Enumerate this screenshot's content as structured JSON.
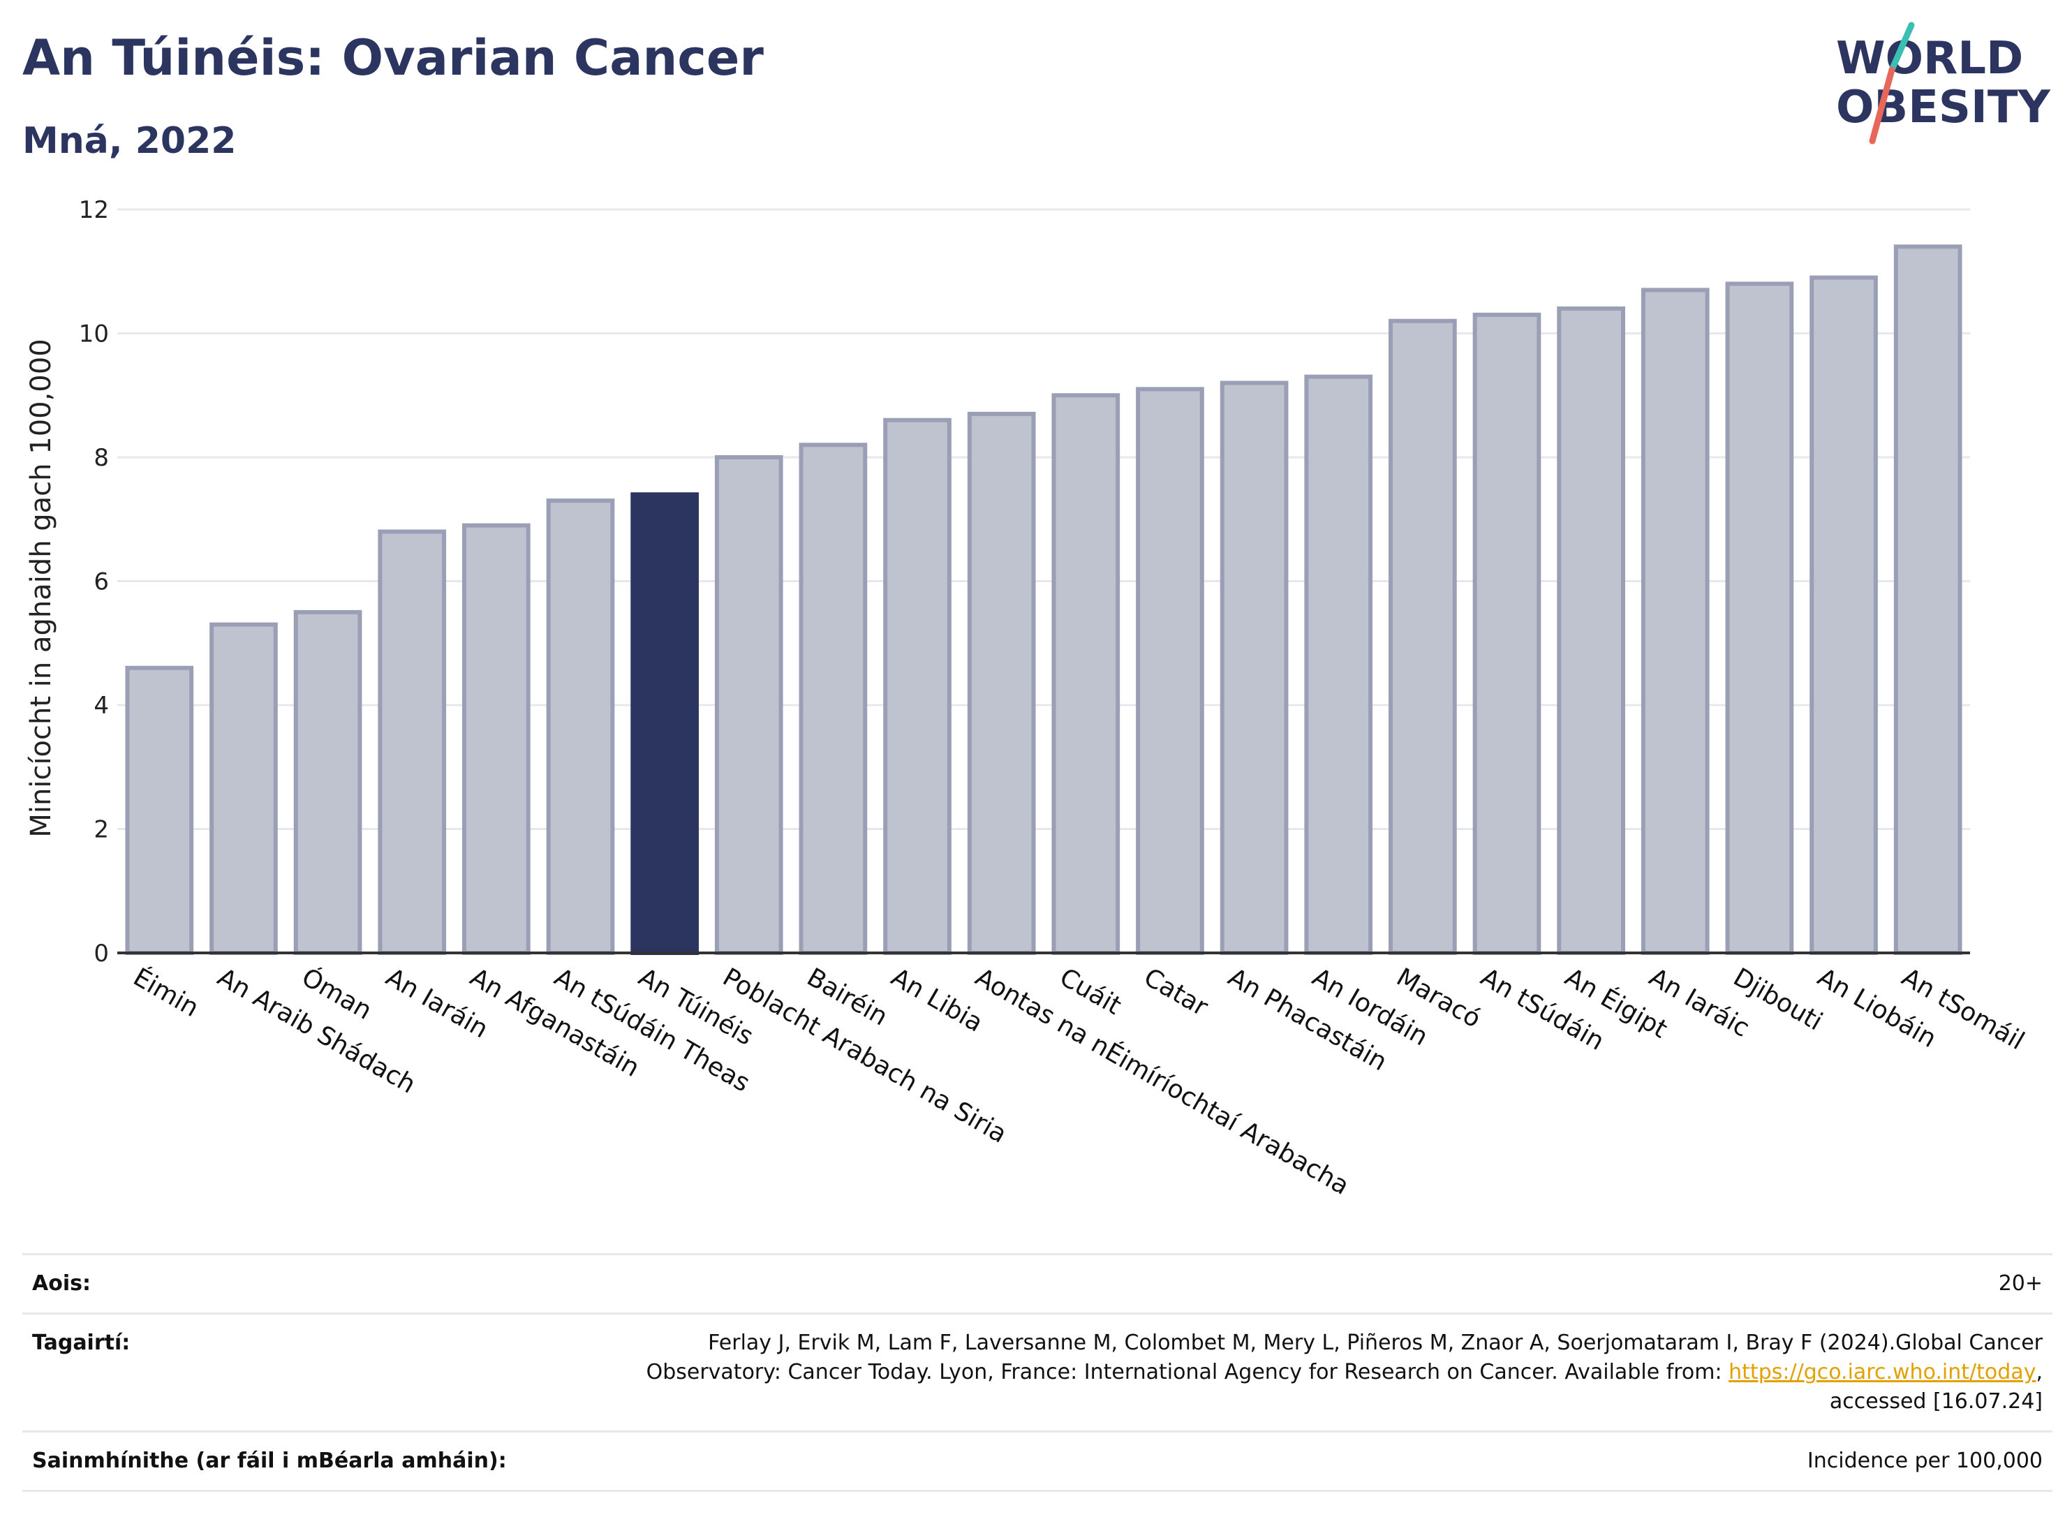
{
  "header": {
    "title": "An Túinéis: Ovarian Cancer",
    "subtitle": "Mná, 2022"
  },
  "logo": {
    "line1": "WORLD",
    "line2": "OBESITY",
    "slash_colors": [
      "#3cbfb3",
      "#e7685a"
    ],
    "text_color": "#2b3560"
  },
  "chart_data": {
    "type": "bar",
    "ylabel": "Minicíocht in aghaidh gach 100,000",
    "xlabel": "",
    "ylim": [
      0,
      12
    ],
    "yticks": [
      0,
      2,
      4,
      6,
      8,
      10,
      12
    ],
    "grid": true,
    "categories": [
      "Éimin",
      "An Araib Shádach",
      "Óman",
      "An Iaráin",
      "An Afganastáin",
      "An tSúdáin Theas",
      "An Túinéis",
      "Poblacht Arabach na Siria",
      "Bairéin",
      "An Libia",
      "Aontas na nÉimíríochtaí Arabacha",
      "Cuáit",
      "Catar",
      "An Phacastáin",
      "An Iordáin",
      "Maracó",
      "An tSúdáin",
      "An Éigipt",
      "An Iaráic",
      "Djibouti",
      "An Liobáin",
      "An tSomáil"
    ],
    "values": [
      4.6,
      5.3,
      5.5,
      6.8,
      6.9,
      7.3,
      7.4,
      8.0,
      8.2,
      8.6,
      8.7,
      9.0,
      9.1,
      9.2,
      9.3,
      10.2,
      10.3,
      10.4,
      10.7,
      10.8,
      10.9,
      11.4
    ],
    "highlight": "An Túinéis",
    "colors": {
      "bar_fill": "#bfc2cf",
      "bar_stroke": "#9a9fb5",
      "highlight": "#2b3560",
      "axis": "#333333",
      "grid": "#e6e8ee"
    }
  },
  "details": {
    "age_label": "Aois:",
    "age_value": "20+",
    "references_label": "Tagairtí:",
    "references_text_1": "Ferlay J, Ervik M, Lam F, Laversanne M, Colombet M, Mery L, Piñeros M, Znaor A, Soerjomataram I, Bray F (2024).Global Cancer Observatory: Cancer Today. Lyon, France: International Agency for Research on Cancer. Available from: ",
    "references_link": "https://gco.iarc.who.int/today",
    "references_text_2": ", accessed [16.07.24]",
    "definitions_label": "Sainmhínithe (ar fáil i mBéarla amháin):",
    "definitions_value": "Incidence per 100,000"
  }
}
